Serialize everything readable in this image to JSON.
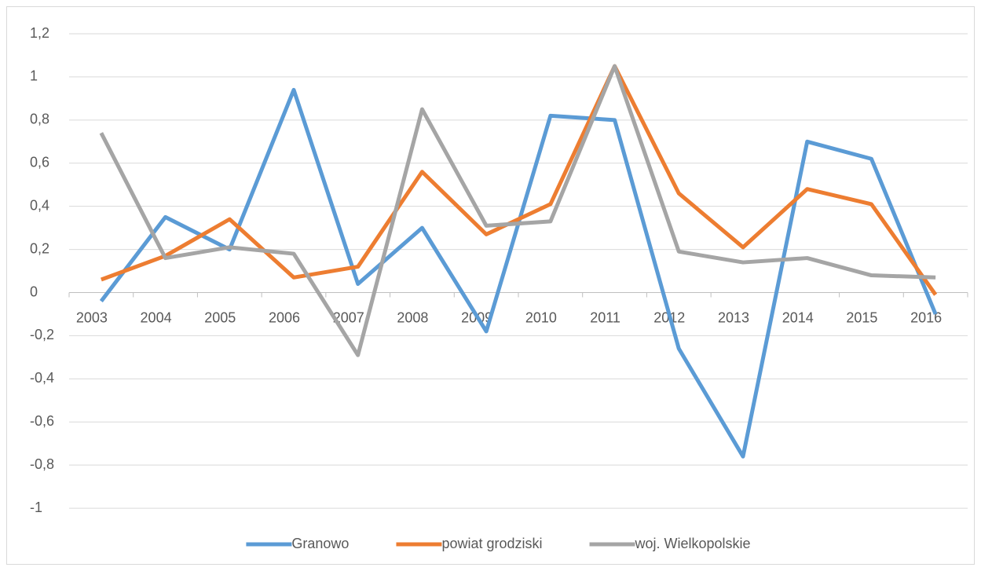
{
  "chart_data": {
    "type": "line",
    "categories": [
      "2003",
      "2004",
      "2005",
      "2006",
      "2007",
      "2008",
      "2009",
      "2010",
      "2011",
      "2012",
      "2013",
      "2014",
      "2015",
      "2016"
    ],
    "series": [
      {
        "name": "Granowo",
        "color": "#5b9bd5",
        "values": [
          -0.04,
          0.35,
          0.2,
          0.94,
          0.04,
          0.3,
          -0.18,
          0.82,
          0.8,
          -0.26,
          -0.76,
          0.7,
          0.62,
          -0.1
        ]
      },
      {
        "name": "powiat grodziski",
        "color": "#ed7d31",
        "values": [
          0.06,
          0.17,
          0.34,
          0.07,
          0.12,
          0.56,
          0.27,
          0.41,
          1.05,
          0.46,
          0.21,
          0.48,
          0.41,
          -0.01
        ]
      },
      {
        "name": "woj. Wielkopolskie",
        "color": "#a5a5a5",
        "values": [
          0.74,
          0.16,
          0.21,
          0.18,
          -0.29,
          0.85,
          0.31,
          0.33,
          1.05,
          0.19,
          0.14,
          0.16,
          0.08,
          0.07
        ]
      }
    ],
    "ylim": [
      -1.2,
      1.2
    ],
    "yticks": [
      {
        "value": -1,
        "label": "-1"
      },
      {
        "value": -0.8,
        "label": "-0,8"
      },
      {
        "value": -0.6,
        "label": "-0,6"
      },
      {
        "value": -0.4,
        "label": "-0,4"
      },
      {
        "value": -0.2,
        "label": "-0,2"
      },
      0,
      {
        "value": 0.2,
        "label": "0,2"
      },
      {
        "value": 0.4,
        "label": "0,4"
      },
      {
        "value": 0.6,
        "label": "0,6"
      },
      {
        "value": 0.8,
        "label": "0,8"
      },
      1,
      {
        "value": 1.2,
        "label": "1,2"
      }
    ],
    "grid": true,
    "legend": "bottom"
  }
}
